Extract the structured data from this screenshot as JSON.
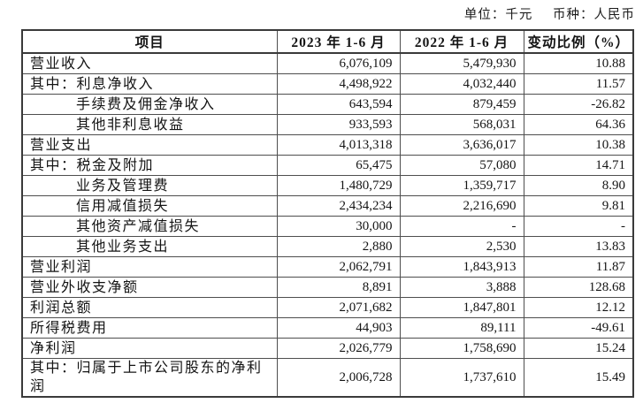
{
  "meta": {
    "unit_label": "单位：千元",
    "currency_label": "币种：人民币"
  },
  "colors": {
    "background": "#ffffff",
    "text": "#141414",
    "border": "#3a3a3a"
  },
  "table": {
    "headers": [
      "项目",
      "2023 年 1-6 月",
      "2022 年 1-6 月",
      "变动比例（%）"
    ],
    "rows": [
      {
        "label": "营业收入",
        "indent": 0,
        "v2023": "6,076,109",
        "v2022": "5,479,930",
        "change": "10.88"
      },
      {
        "label": "其中：利息净收入",
        "indent": 0,
        "v2023": "4,498,922",
        "v2022": "4,032,440",
        "change": "11.57"
      },
      {
        "label": "手续费及佣金净收入",
        "indent": 1,
        "v2023": "643,594",
        "v2022": "879,459",
        "change": "-26.82"
      },
      {
        "label": "其他非利息收益",
        "indent": 1,
        "v2023": "933,593",
        "v2022": "568,031",
        "change": "64.36"
      },
      {
        "label": "营业支出",
        "indent": 0,
        "v2023": "4,013,318",
        "v2022": "3,636,017",
        "change": "10.38"
      },
      {
        "label": "其中：税金及附加",
        "indent": 0,
        "v2023": "65,475",
        "v2022": "57,080",
        "change": "14.71"
      },
      {
        "label": "业务及管理费",
        "indent": 1,
        "v2023": "1,480,729",
        "v2022": "1,359,717",
        "change": "8.90"
      },
      {
        "label": "信用减值损失",
        "indent": 1,
        "v2023": "2,434,234",
        "v2022": "2,216,690",
        "change": "9.81"
      },
      {
        "label": "其他资产减值损失",
        "indent": 1,
        "v2023": "30,000",
        "v2022": "-",
        "change": "-"
      },
      {
        "label": "其他业务支出",
        "indent": 1,
        "v2023": "2,880",
        "v2022": "2,530",
        "change": "13.83"
      },
      {
        "label": "营业利润",
        "indent": 0,
        "v2023": "2,062,791",
        "v2022": "1,843,913",
        "change": "11.87"
      },
      {
        "label": "营业外收支净额",
        "indent": 0,
        "v2023": "8,891",
        "v2022": "3,888",
        "change": "128.68"
      },
      {
        "label": "利润总额",
        "indent": 0,
        "v2023": "2,071,682",
        "v2022": "1,847,801",
        "change": "12.12"
      },
      {
        "label": "所得税费用",
        "indent": 0,
        "v2023": "44,903",
        "v2022": "89,111",
        "change": "-49.61"
      },
      {
        "label": "净利润",
        "indent": 0,
        "v2023": "2,026,779",
        "v2022": "1,758,690",
        "change": "15.24"
      },
      {
        "label": "其中：归属于上市公司股东的净利润",
        "indent": 0,
        "v2023": "2,006,728",
        "v2022": "1,737,610",
        "change": "15.49"
      }
    ]
  }
}
